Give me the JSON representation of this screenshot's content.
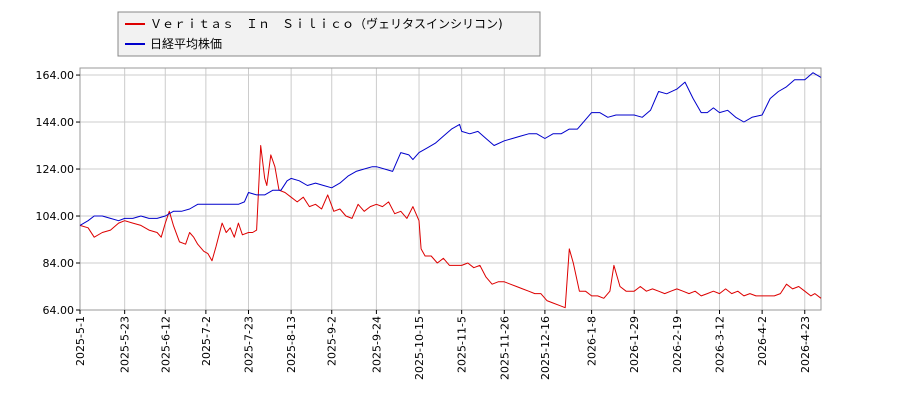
{
  "chart_data": {
    "type": "line",
    "title": "",
    "xlabel": "",
    "ylabel": "",
    "ylim": [
      64,
      167
    ],
    "x_range": [
      "2025-05-01",
      "2026-05-01"
    ],
    "y_ticks": [
      "64.00",
      "84.00",
      "104.00",
      "124.00",
      "144.00",
      "164.00"
    ],
    "y_tick_values": [
      64,
      84,
      104,
      124,
      144,
      164
    ],
    "x_ticks": [
      "2025-5-1",
      "2025-5-23",
      "2025-6-12",
      "2025-7-2",
      "2025-7-23",
      "2025-8-13",
      "2025-9-2",
      "2025-9-24",
      "2025-10-15",
      "2025-11-5",
      "2025-11-26",
      "2025-12-16",
      "2026-1-8",
      "2026-1-29",
      "2026-2-19",
      "2026-3-12",
      "2026-4-2",
      "2026-4-23"
    ],
    "x_tick_dates": [
      "2025-05-01",
      "2025-05-23",
      "2025-06-12",
      "2025-07-02",
      "2025-07-23",
      "2025-08-13",
      "2025-09-02",
      "2025-09-24",
      "2025-10-15",
      "2025-11-05",
      "2025-11-26",
      "2025-12-16",
      "2026-01-08",
      "2026-01-29",
      "2026-02-19",
      "2026-03-12",
      "2026-04-02",
      "2026-04-23"
    ],
    "grid": true,
    "legend_position": "top-left",
    "series": [
      {
        "name": "Ｖｅｒｉｔａｓ　Ｉｎ　Ｓｉｌｉｃｏ（ヴェリタスインシリコン)",
        "color": "#dd0000",
        "points": [
          [
            "2025-05-01",
            100
          ],
          [
            "2025-05-05",
            99
          ],
          [
            "2025-05-08",
            95
          ],
          [
            "2025-05-12",
            97
          ],
          [
            "2025-05-16",
            98
          ],
          [
            "2025-05-20",
            101
          ],
          [
            "2025-05-23",
            102
          ],
          [
            "2025-05-27",
            101
          ],
          [
            "2025-05-31",
            100
          ],
          [
            "2025-06-04",
            98
          ],
          [
            "2025-06-08",
            97
          ],
          [
            "2025-06-10",
            95
          ],
          [
            "2025-06-12",
            101
          ],
          [
            "2025-06-14",
            106
          ],
          [
            "2025-06-16",
            100
          ],
          [
            "2025-06-19",
            93
          ],
          [
            "2025-06-22",
            92
          ],
          [
            "2025-06-24",
            97
          ],
          [
            "2025-06-26",
            95
          ],
          [
            "2025-06-28",
            92
          ],
          [
            "2025-07-01",
            89
          ],
          [
            "2025-07-03",
            88
          ],
          [
            "2025-07-05",
            85
          ],
          [
            "2025-07-07",
            91
          ],
          [
            "2025-07-10",
            101
          ],
          [
            "2025-07-12",
            97
          ],
          [
            "2025-07-14",
            99
          ],
          [
            "2025-07-16",
            95
          ],
          [
            "2025-07-18",
            101
          ],
          [
            "2025-07-20",
            96
          ],
          [
            "2025-07-23",
            97
          ],
          [
            "2025-07-25",
            97
          ],
          [
            "2025-07-27",
            98
          ],
          [
            "2025-07-29",
            134
          ],
          [
            "2025-07-31",
            120
          ],
          [
            "2025-08-01",
            117
          ],
          [
            "2025-08-03",
            130
          ],
          [
            "2025-08-05",
            125
          ],
          [
            "2025-08-07",
            115
          ],
          [
            "2025-08-10",
            114
          ],
          [
            "2025-08-13",
            112
          ],
          [
            "2025-08-16",
            110
          ],
          [
            "2025-08-19",
            112
          ],
          [
            "2025-08-22",
            108
          ],
          [
            "2025-08-25",
            109
          ],
          [
            "2025-08-28",
            107
          ],
          [
            "2025-08-31",
            113
          ],
          [
            "2025-09-03",
            106
          ],
          [
            "2025-09-06",
            107
          ],
          [
            "2025-09-09",
            104
          ],
          [
            "2025-09-12",
            103
          ],
          [
            "2025-09-15",
            109
          ],
          [
            "2025-09-18",
            106
          ],
          [
            "2025-09-21",
            108
          ],
          [
            "2025-09-24",
            109
          ],
          [
            "2025-09-27",
            108
          ],
          [
            "2025-09-30",
            110
          ],
          [
            "2025-10-03",
            105
          ],
          [
            "2025-10-06",
            106
          ],
          [
            "2025-10-09",
            103
          ],
          [
            "2025-10-12",
            108
          ],
          [
            "2025-10-15",
            102
          ],
          [
            "2025-10-16",
            90
          ],
          [
            "2025-10-18",
            87
          ],
          [
            "2025-10-21",
            87
          ],
          [
            "2025-10-24",
            84
          ],
          [
            "2025-10-27",
            86
          ],
          [
            "2025-10-30",
            83
          ],
          [
            "2025-11-02",
            83
          ],
          [
            "2025-11-05",
            83
          ],
          [
            "2025-11-08",
            84
          ],
          [
            "2025-11-11",
            82
          ],
          [
            "2025-11-14",
            83
          ],
          [
            "2025-11-17",
            78
          ],
          [
            "2025-11-20",
            75
          ],
          [
            "2025-11-23",
            76
          ],
          [
            "2025-11-26",
            76
          ],
          [
            "2025-11-29",
            75
          ],
          [
            "2025-12-02",
            74
          ],
          [
            "2025-12-05",
            73
          ],
          [
            "2025-12-08",
            72
          ],
          [
            "2025-12-11",
            71
          ],
          [
            "2025-12-14",
            71
          ],
          [
            "2025-12-17",
            68
          ],
          [
            "2025-12-20",
            67
          ],
          [
            "2025-12-23",
            66
          ],
          [
            "2025-12-26",
            65
          ],
          [
            "2025-12-28",
            90
          ],
          [
            "2025-12-30",
            84
          ],
          [
            "2026-01-02",
            72
          ],
          [
            "2026-01-05",
            72
          ],
          [
            "2026-01-08",
            70
          ],
          [
            "2026-01-11",
            70
          ],
          [
            "2026-01-14",
            69
          ],
          [
            "2026-01-17",
            72
          ],
          [
            "2026-01-19",
            83
          ],
          [
            "2026-01-22",
            74
          ],
          [
            "2026-01-25",
            72
          ],
          [
            "2026-01-29",
            72
          ],
          [
            "2026-02-01",
            74
          ],
          [
            "2026-02-04",
            72
          ],
          [
            "2026-02-07",
            73
          ],
          [
            "2026-02-10",
            72
          ],
          [
            "2026-02-13",
            71
          ],
          [
            "2026-02-16",
            72
          ],
          [
            "2026-02-19",
            73
          ],
          [
            "2026-02-22",
            72
          ],
          [
            "2026-02-25",
            71
          ],
          [
            "2026-02-28",
            72
          ],
          [
            "2026-03-03",
            70
          ],
          [
            "2026-03-06",
            71
          ],
          [
            "2026-03-09",
            72
          ],
          [
            "2026-03-12",
            71
          ],
          [
            "2026-03-15",
            73
          ],
          [
            "2026-03-18",
            71
          ],
          [
            "2026-03-21",
            72
          ],
          [
            "2026-03-24",
            70
          ],
          [
            "2026-03-27",
            71
          ],
          [
            "2026-03-30",
            70
          ],
          [
            "2026-04-02",
            70
          ],
          [
            "2026-04-05",
            70
          ],
          [
            "2026-04-08",
            70
          ],
          [
            "2026-04-11",
            71
          ],
          [
            "2026-04-14",
            75
          ],
          [
            "2026-04-17",
            73
          ],
          [
            "2026-04-20",
            74
          ],
          [
            "2026-04-23",
            72
          ],
          [
            "2026-04-26",
            70
          ],
          [
            "2026-04-28",
            71
          ],
          [
            "2026-05-01",
            69
          ]
        ]
      },
      {
        "name": "日経平均株価",
        "color": "#0000cc",
        "points": [
          [
            "2025-05-01",
            100
          ],
          [
            "2025-05-05",
            102
          ],
          [
            "2025-05-08",
            104
          ],
          [
            "2025-05-12",
            104
          ],
          [
            "2025-05-16",
            103
          ],
          [
            "2025-05-20",
            102
          ],
          [
            "2025-05-23",
            103
          ],
          [
            "2025-05-27",
            103
          ],
          [
            "2025-05-31",
            104
          ],
          [
            "2025-06-04",
            103
          ],
          [
            "2025-06-08",
            103
          ],
          [
            "2025-06-12",
            104
          ],
          [
            "2025-06-16",
            106
          ],
          [
            "2025-06-20",
            106
          ],
          [
            "2025-06-24",
            107
          ],
          [
            "2025-06-28",
            109
          ],
          [
            "2025-07-02",
            109
          ],
          [
            "2025-07-06",
            109
          ],
          [
            "2025-07-10",
            109
          ],
          [
            "2025-07-14",
            109
          ],
          [
            "2025-07-18",
            109
          ],
          [
            "2025-07-21",
            110
          ],
          [
            "2025-07-23",
            114
          ],
          [
            "2025-07-27",
            113
          ],
          [
            "2025-07-31",
            113
          ],
          [
            "2025-08-04",
            115
          ],
          [
            "2025-08-08",
            115
          ],
          [
            "2025-08-11",
            119
          ],
          [
            "2025-08-13",
            120
          ],
          [
            "2025-08-17",
            119
          ],
          [
            "2025-08-21",
            117
          ],
          [
            "2025-08-25",
            118
          ],
          [
            "2025-08-29",
            117
          ],
          [
            "2025-09-02",
            116
          ],
          [
            "2025-09-06",
            118
          ],
          [
            "2025-09-10",
            121
          ],
          [
            "2025-09-14",
            123
          ],
          [
            "2025-09-18",
            124
          ],
          [
            "2025-09-22",
            125
          ],
          [
            "2025-09-24",
            125
          ],
          [
            "2025-09-28",
            124
          ],
          [
            "2025-10-02",
            123
          ],
          [
            "2025-10-06",
            131
          ],
          [
            "2025-10-10",
            130
          ],
          [
            "2025-10-12",
            128
          ],
          [
            "2025-10-15",
            131
          ],
          [
            "2025-10-19",
            133
          ],
          [
            "2025-10-23",
            135
          ],
          [
            "2025-10-27",
            138
          ],
          [
            "2025-10-31",
            141
          ],
          [
            "2025-11-04",
            143
          ],
          [
            "2025-11-05",
            140
          ],
          [
            "2025-11-09",
            139
          ],
          [
            "2025-11-13",
            140
          ],
          [
            "2025-11-17",
            137
          ],
          [
            "2025-11-21",
            134
          ],
          [
            "2025-11-26",
            136
          ],
          [
            "2025-11-30",
            137
          ],
          [
            "2025-12-04",
            138
          ],
          [
            "2025-12-08",
            139
          ],
          [
            "2025-12-12",
            139
          ],
          [
            "2025-12-16",
            137
          ],
          [
            "2025-12-20",
            139
          ],
          [
            "2025-12-24",
            139
          ],
          [
            "2025-12-28",
            141
          ],
          [
            "2026-01-01",
            141
          ],
          [
            "2026-01-05",
            145
          ],
          [
            "2026-01-08",
            148
          ],
          [
            "2026-01-12",
            148
          ],
          [
            "2026-01-16",
            146
          ],
          [
            "2026-01-20",
            147
          ],
          [
            "2026-01-24",
            147
          ],
          [
            "2026-01-29",
            147
          ],
          [
            "2026-02-02",
            146
          ],
          [
            "2026-02-06",
            149
          ],
          [
            "2026-02-10",
            157
          ],
          [
            "2026-02-14",
            156
          ],
          [
            "2026-02-19",
            158
          ],
          [
            "2026-02-23",
            161
          ],
          [
            "2026-02-27",
            154
          ],
          [
            "2026-03-03",
            148
          ],
          [
            "2026-03-06",
            148
          ],
          [
            "2026-03-09",
            150
          ],
          [
            "2026-03-12",
            148
          ],
          [
            "2026-03-16",
            149
          ],
          [
            "2026-03-20",
            146
          ],
          [
            "2026-03-24",
            144
          ],
          [
            "2026-03-28",
            146
          ],
          [
            "2026-04-02",
            147
          ],
          [
            "2026-04-06",
            154
          ],
          [
            "2026-04-10",
            157
          ],
          [
            "2026-04-14",
            159
          ],
          [
            "2026-04-18",
            162
          ],
          [
            "2026-04-23",
            162
          ],
          [
            "2026-04-27",
            165
          ],
          [
            "2026-05-01",
            163
          ]
        ]
      }
    ]
  }
}
